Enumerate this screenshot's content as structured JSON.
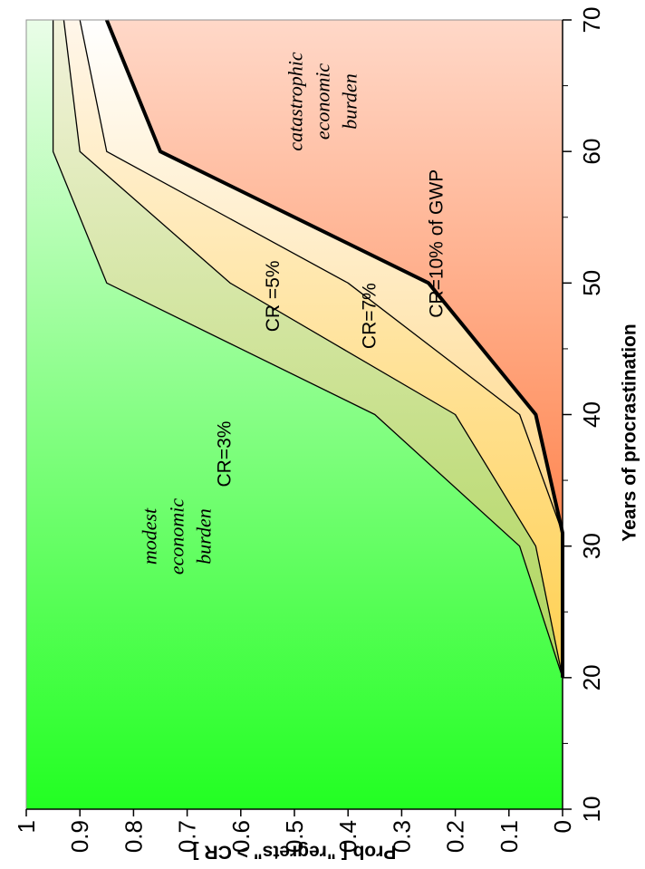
{
  "chart_data": {
    "type": "area",
    "orientation": "rotated-90-ccw",
    "xlabel": "Years of procrastination",
    "ylabel": "Prob [ \"regrets\" > CR ]",
    "xlim": [
      10,
      70
    ],
    "ylim": [
      0,
      1
    ],
    "x_ticks": [
      "10",
      "20",
      "30",
      "40",
      "50",
      "60",
      "70"
    ],
    "y_ticks": [
      "0",
      "0.1",
      "0.2",
      "0.3",
      "0.4",
      "0.5",
      "0.6",
      "0.7",
      "0.8",
      "0.9",
      "1"
    ],
    "series": [
      {
        "name": "CR=3%",
        "x": [
          20,
          30,
          40,
          50,
          60,
          70
        ],
        "y": [
          0,
          0.08,
          0.35,
          0.85,
          0.95,
          0.95
        ]
      },
      {
        "name": "CR =5%",
        "x": [
          20,
          30,
          40,
          50,
          60,
          70
        ],
        "y": [
          0,
          0.05,
          0.2,
          0.62,
          0.9,
          0.93
        ]
      },
      {
        "name": "CR=7%",
        "x": [
          20,
          31,
          40,
          50,
          60,
          70
        ],
        "y": [
          0,
          0,
          0.08,
          0.4,
          0.85,
          0.9
        ]
      },
      {
        "name": "CR=10% of GWP",
        "x": [
          20,
          31,
          40,
          50,
          60,
          70
        ],
        "y": [
          0,
          0,
          0.05,
          0.25,
          0.75,
          0.85
        ]
      }
    ],
    "annotations": {
      "modest": [
        "modest",
        "economic",
        "burden"
      ],
      "catastrophic": [
        "catastrophic",
        "economic",
        "burden"
      ]
    },
    "colors": {
      "green_strong": "#22ff22",
      "green_pale": "#eafde8",
      "red_strong": "#ff5a10",
      "red_pale": "#ffd8c8",
      "band_3_5_low": "#9fcf3f",
      "band_3_5_high": "#f2f2dc",
      "band_5_7_low": "#ffc830",
      "band_5_7_high": "#fff6ea",
      "band_7_10_low": "#ffc040",
      "band_7_10_high": "#ffffff",
      "axis": "#909090"
    }
  }
}
